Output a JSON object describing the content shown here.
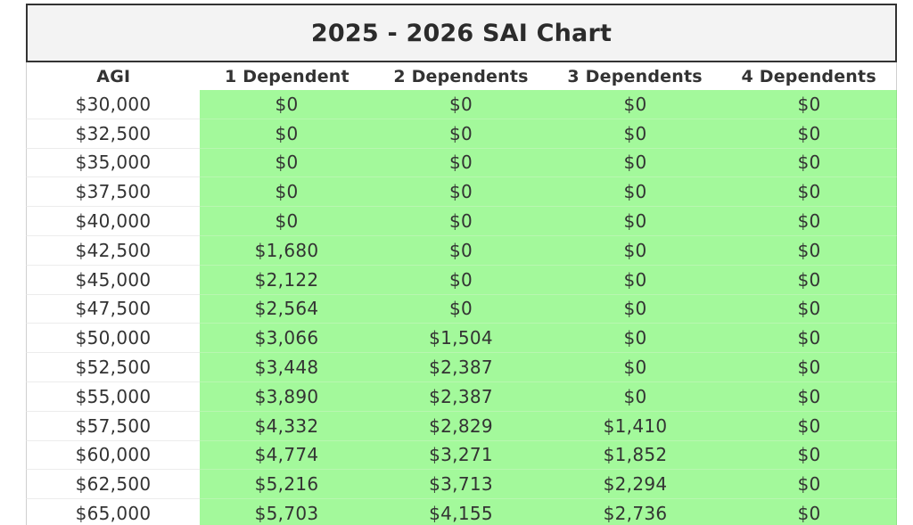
{
  "title": "2025 - 2026 SAI Chart",
  "headers": [
    "AGI",
    "1 Dependent",
    "2 Dependents",
    "3 Dependents",
    "4 Dependents"
  ],
  "rows": [
    [
      "$30,000",
      "$0",
      "$0",
      "$0",
      "$0"
    ],
    [
      "$32,500",
      "$0",
      "$0",
      "$0",
      "$0"
    ],
    [
      "$35,000",
      "$0",
      "$0",
      "$0",
      "$0"
    ],
    [
      "$37,500",
      "$0",
      "$0",
      "$0",
      "$0"
    ],
    [
      "$40,000",
      "$0",
      "$0",
      "$0",
      "$0"
    ],
    [
      "$42,500",
      "$1,680",
      "$0",
      "$0",
      "$0"
    ],
    [
      "$45,000",
      "$2,122",
      "$0",
      "$0",
      "$0"
    ],
    [
      "$47,500",
      "$2,564",
      "$0",
      "$0",
      "$0"
    ],
    [
      "$50,000",
      "$3,066",
      "$1,504",
      "$0",
      "$0"
    ],
    [
      "$52,500",
      "$3,448",
      "$2,387",
      "$0",
      "$0"
    ],
    [
      "$55,000",
      "$3,890",
      "$2,387",
      "$0",
      "$0"
    ],
    [
      "$57,500",
      "$4,332",
      "$2,829",
      "$1,410",
      "$0"
    ],
    [
      "$60,000",
      "$4,774",
      "$3,271",
      "$1,852",
      "$0"
    ],
    [
      "$62,500",
      "$5,216",
      "$3,713",
      "$2,294",
      "$0"
    ],
    [
      "$65,000",
      "$5,703",
      "$4,155",
      "$2,736",
      "$0"
    ]
  ],
  "colors": {
    "value_cell_bg": "#a3f99b",
    "title_bg": "#f3f3f3",
    "text": "#333333"
  }
}
